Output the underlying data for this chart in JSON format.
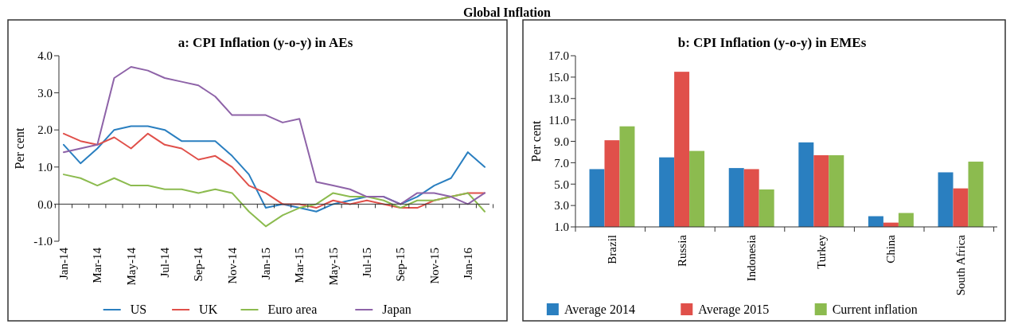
{
  "chart_data": [
    {
      "type": "line",
      "title": "a: CPI Inflation (y-o-y) in AEs",
      "ylabel": "Per cent",
      "annotations": [
        "Global Inflation"
      ],
      "categories": [
        "Jan-14",
        null,
        "Mar-14",
        null,
        "May-14",
        null,
        "Jul-14",
        null,
        "Sep-14",
        null,
        "Nov-14",
        null,
        "Jan-15",
        null,
        "Mar-15",
        null,
        "May-15",
        null,
        "Jul-15",
        null,
        "Sep-15",
        null,
        "Nov-15",
        null,
        "Jan-16",
        null
      ],
      "series": [
        {
          "name": "US",
          "color": "#2a7fc0",
          "values": [
            1.6,
            1.1,
            1.5,
            2.0,
            2.1,
            2.1,
            2.0,
            1.7,
            1.7,
            1.7,
            1.3,
            0.8,
            -0.1,
            0.0,
            -0.1,
            -0.2,
            0.0,
            0.1,
            0.2,
            0.2,
            0.0,
            0.2,
            0.5,
            0.7,
            1.4,
            1.0
          ]
        },
        {
          "name": "UK",
          "color": "#e0504a",
          "values": [
            1.9,
            1.7,
            1.6,
            1.8,
            1.5,
            1.9,
            1.6,
            1.5,
            1.2,
            1.3,
            1.0,
            0.5,
            0.3,
            0.0,
            0.0,
            -0.1,
            0.1,
            0.0,
            0.1,
            0.0,
            -0.1,
            -0.1,
            0.1,
            0.2,
            0.3,
            0.3
          ]
        },
        {
          "name": "Euro area",
          "color": "#8cbb4f",
          "values": [
            0.8,
            0.7,
            0.5,
            0.7,
            0.5,
            0.5,
            0.4,
            0.4,
            0.3,
            0.4,
            0.3,
            -0.2,
            -0.6,
            -0.3,
            -0.1,
            0.0,
            0.3,
            0.2,
            0.2,
            0.1,
            -0.1,
            0.1,
            0.1,
            0.2,
            0.3,
            -0.2
          ]
        },
        {
          "name": "Japan",
          "color": "#8e63a8",
          "values": [
            1.4,
            1.5,
            1.6,
            3.4,
            3.7,
            3.6,
            3.4,
            3.3,
            3.2,
            2.9,
            2.4,
            2.4,
            2.4,
            2.2,
            2.3,
            0.6,
            0.5,
            0.4,
            0.2,
            0.2,
            0.0,
            0.3,
            0.3,
            0.2,
            0.0,
            0.3
          ]
        }
      ],
      "ylim": [
        -1,
        4
      ],
      "yticks": [
        {
          "value": -1,
          "label": "-1.0"
        },
        {
          "value": 0,
          "label": "0.0"
        },
        {
          "value": 1,
          "label": "1.0"
        },
        {
          "value": 2,
          "label": "2.0"
        },
        {
          "value": 3,
          "label": "3.0"
        },
        {
          "value": 4,
          "label": "4.0"
        }
      ],
      "ref_lines": [
        {
          "axis": "y",
          "value": 0,
          "color": "#333333"
        }
      ],
      "legend": "bottom",
      "grid": false
    },
    {
      "type": "bar",
      "title": "b: CPI Inflation (y-o-y) in EMEs",
      "ylabel": "Per cent",
      "categories": [
        "Brazil",
        "Russia",
        "Indonesia",
        "Turkey",
        "China",
        "South Africa"
      ],
      "series": [
        {
          "name": "Average 2014",
          "color": "#2a7fc0",
          "values": [
            6.4,
            7.5,
            6.5,
            8.9,
            2.0,
            6.1
          ]
        },
        {
          "name": "Average 2015",
          "color": "#e0504a",
          "values": [
            9.1,
            15.5,
            6.4,
            7.7,
            1.4,
            4.6
          ]
        },
        {
          "name": "Current inflation",
          "color": "#8cbb4f",
          "values": [
            10.4,
            8.1,
            4.5,
            7.7,
            2.3,
            7.1
          ]
        }
      ],
      "ylim": [
        1,
        17
      ],
      "yticks": [
        {
          "value": 1,
          "label": "1.0"
        },
        {
          "value": 3,
          "label": "3.0"
        },
        {
          "value": 5,
          "label": "5.0"
        },
        {
          "value": 7,
          "label": "7.0"
        },
        {
          "value": 9,
          "label": "9.0"
        },
        {
          "value": 11,
          "label": "11.0"
        },
        {
          "value": 13,
          "label": "13.0"
        },
        {
          "value": 15,
          "label": "15.0"
        },
        {
          "value": 17,
          "label": "17.0"
        }
      ],
      "legend": "bottom",
      "grid": false
    }
  ]
}
